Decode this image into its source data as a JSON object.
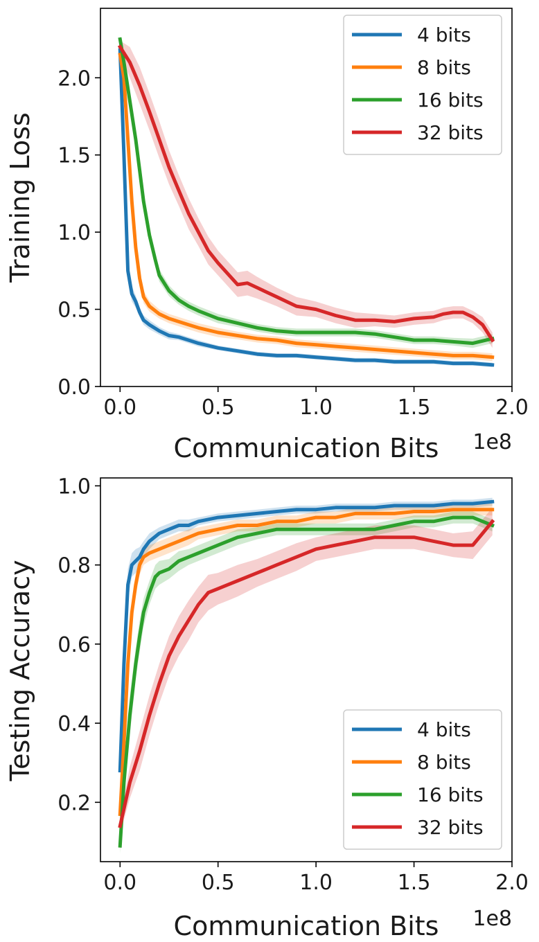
{
  "chart_data": [
    {
      "type": "line",
      "title": "",
      "xlabel": "Communication Bits",
      "ylabel": "Training Loss",
      "x_offset_label": "1e8",
      "xlim": [
        -0.1,
        2.0
      ],
      "ylim": [
        0.0,
        2.45
      ],
      "xticks": [
        0.0,
        0.5,
        1.0,
        1.5,
        2.0
      ],
      "xtick_labels": [
        "0.0",
        "0.5",
        "1.0",
        "1.5",
        "2.0"
      ],
      "yticks": [
        0.0,
        0.5,
        1.0,
        1.5,
        2.0
      ],
      "ytick_labels": [
        "0.0",
        "0.5",
        "1.0",
        "1.5",
        "2.0"
      ],
      "grid": false,
      "legend_position": "top-right",
      "series": [
        {
          "name": "4 bits",
          "color": "#1f77b4",
          "x": [
            0.0,
            0.02,
            0.04,
            0.06,
            0.08,
            0.1,
            0.12,
            0.15,
            0.2,
            0.25,
            0.3,
            0.35,
            0.4,
            0.5,
            0.6,
            0.7,
            0.8,
            0.9,
            1.0,
            1.1,
            1.2,
            1.3,
            1.4,
            1.5,
            1.6,
            1.7,
            1.8,
            1.9
          ],
          "y": [
            2.18,
            1.5,
            0.75,
            0.6,
            0.55,
            0.48,
            0.43,
            0.4,
            0.36,
            0.33,
            0.32,
            0.3,
            0.28,
            0.25,
            0.23,
            0.21,
            0.2,
            0.2,
            0.19,
            0.18,
            0.17,
            0.17,
            0.16,
            0.16,
            0.16,
            0.15,
            0.15,
            0.14
          ],
          "band": [
            0.01,
            0.05,
            0.06,
            0.05,
            0.04,
            0.03,
            0.03,
            0.03,
            0.025,
            0.025,
            0.02,
            0.02,
            0.02,
            0.015,
            0.015,
            0.015,
            0.015,
            0.015,
            0.015,
            0.015,
            0.015,
            0.015,
            0.015,
            0.015,
            0.015,
            0.015,
            0.015,
            0.015
          ]
        },
        {
          "name": "8 bits",
          "color": "#ff7f0e",
          "x": [
            0.0,
            0.02,
            0.04,
            0.06,
            0.08,
            0.1,
            0.12,
            0.15,
            0.2,
            0.25,
            0.3,
            0.35,
            0.4,
            0.5,
            0.6,
            0.7,
            0.8,
            0.9,
            1.0,
            1.1,
            1.2,
            1.3,
            1.4,
            1.5,
            1.6,
            1.7,
            1.8,
            1.9
          ],
          "y": [
            2.15,
            2.0,
            1.6,
            1.2,
            0.9,
            0.7,
            0.58,
            0.52,
            0.47,
            0.44,
            0.42,
            0.4,
            0.38,
            0.35,
            0.33,
            0.31,
            0.3,
            0.28,
            0.27,
            0.26,
            0.25,
            0.24,
            0.23,
            0.22,
            0.21,
            0.2,
            0.2,
            0.19
          ],
          "band": [
            0.02,
            0.06,
            0.07,
            0.06,
            0.05,
            0.04,
            0.04,
            0.035,
            0.03,
            0.03,
            0.03,
            0.03,
            0.03,
            0.03,
            0.025,
            0.025,
            0.025,
            0.025,
            0.025,
            0.025,
            0.025,
            0.025,
            0.025,
            0.025,
            0.025,
            0.025,
            0.025,
            0.025
          ]
        },
        {
          "name": "16 bits",
          "color": "#2ca02c",
          "x": [
            0.0,
            0.02,
            0.05,
            0.08,
            0.1,
            0.12,
            0.15,
            0.18,
            0.2,
            0.25,
            0.3,
            0.35,
            0.4,
            0.5,
            0.6,
            0.7,
            0.8,
            0.9,
            1.0,
            1.1,
            1.2,
            1.3,
            1.4,
            1.5,
            1.6,
            1.7,
            1.8,
            1.9
          ],
          "y": [
            2.25,
            2.1,
            1.85,
            1.6,
            1.4,
            1.2,
            0.98,
            0.82,
            0.72,
            0.62,
            0.56,
            0.52,
            0.49,
            0.44,
            0.41,
            0.38,
            0.36,
            0.35,
            0.35,
            0.35,
            0.35,
            0.34,
            0.32,
            0.3,
            0.3,
            0.29,
            0.28,
            0.31
          ],
          "band": [
            0.02,
            0.05,
            0.06,
            0.06,
            0.05,
            0.05,
            0.05,
            0.04,
            0.04,
            0.035,
            0.03,
            0.03,
            0.03,
            0.03,
            0.025,
            0.025,
            0.025,
            0.025,
            0.025,
            0.025,
            0.025,
            0.025,
            0.025,
            0.025,
            0.025,
            0.025,
            0.03,
            0.03
          ]
        },
        {
          "name": "32 bits",
          "color": "#d62728",
          "x": [
            0.0,
            0.05,
            0.1,
            0.15,
            0.2,
            0.25,
            0.3,
            0.35,
            0.4,
            0.45,
            0.5,
            0.6,
            0.65,
            0.7,
            0.8,
            0.9,
            1.0,
            1.1,
            1.2,
            1.3,
            1.4,
            1.5,
            1.6,
            1.65,
            1.7,
            1.75,
            1.8,
            1.85,
            1.9
          ],
          "y": [
            2.2,
            2.1,
            1.95,
            1.78,
            1.6,
            1.42,
            1.27,
            1.12,
            1.0,
            0.88,
            0.8,
            0.66,
            0.67,
            0.64,
            0.58,
            0.52,
            0.5,
            0.46,
            0.43,
            0.43,
            0.42,
            0.44,
            0.45,
            0.47,
            0.48,
            0.48,
            0.45,
            0.4,
            0.3
          ],
          "band": [
            0.04,
            0.1,
            0.12,
            0.12,
            0.12,
            0.11,
            0.1,
            0.1,
            0.09,
            0.09,
            0.08,
            0.08,
            0.08,
            0.07,
            0.06,
            0.06,
            0.05,
            0.05,
            0.05,
            0.04,
            0.04,
            0.04,
            0.04,
            0.04,
            0.04,
            0.04,
            0.04,
            0.05,
            0.05
          ]
        }
      ]
    },
    {
      "type": "line",
      "title": "",
      "xlabel": "Communication Bits",
      "ylabel": "Testing Accuracy",
      "x_offset_label": "1e8",
      "xlim": [
        -0.1,
        2.0
      ],
      "ylim": [
        0.05,
        1.02
      ],
      "xticks": [
        0.0,
        0.5,
        1.0,
        1.5,
        2.0
      ],
      "xtick_labels": [
        "0.0",
        "0.5",
        "1.0",
        "1.5",
        "2.0"
      ],
      "yticks": [
        0.2,
        0.4,
        0.6,
        0.8,
        1.0
      ],
      "ytick_labels": [
        "0.2",
        "0.4",
        "0.6",
        "0.8",
        "1.0"
      ],
      "grid": false,
      "legend_position": "bottom-right",
      "series": [
        {
          "name": "4 bits",
          "color": "#1f77b4",
          "x": [
            0.0,
            0.02,
            0.04,
            0.06,
            0.08,
            0.1,
            0.12,
            0.15,
            0.2,
            0.25,
            0.3,
            0.35,
            0.4,
            0.5,
            0.6,
            0.7,
            0.8,
            0.9,
            1.0,
            1.1,
            1.2,
            1.3,
            1.4,
            1.5,
            1.6,
            1.7,
            1.8,
            1.9
          ],
          "y": [
            0.28,
            0.55,
            0.75,
            0.8,
            0.81,
            0.82,
            0.84,
            0.86,
            0.88,
            0.89,
            0.9,
            0.9,
            0.91,
            0.92,
            0.925,
            0.93,
            0.935,
            0.94,
            0.94,
            0.945,
            0.945,
            0.945,
            0.95,
            0.95,
            0.95,
            0.955,
            0.955,
            0.96
          ],
          "band": [
            0.01,
            0.05,
            0.04,
            0.03,
            0.03,
            0.025,
            0.02,
            0.02,
            0.015,
            0.015,
            0.015,
            0.015,
            0.01,
            0.01,
            0.01,
            0.01,
            0.01,
            0.01,
            0.01,
            0.01,
            0.01,
            0.01,
            0.01,
            0.01,
            0.01,
            0.01,
            0.01,
            0.01
          ]
        },
        {
          "name": "8 bits",
          "color": "#ff7f0e",
          "x": [
            0.0,
            0.02,
            0.04,
            0.06,
            0.08,
            0.1,
            0.12,
            0.15,
            0.2,
            0.25,
            0.3,
            0.35,
            0.4,
            0.5,
            0.6,
            0.7,
            0.8,
            0.9,
            1.0,
            1.1,
            1.2,
            1.3,
            1.4,
            1.5,
            1.6,
            1.7,
            1.8,
            1.9
          ],
          "y": [
            0.17,
            0.35,
            0.55,
            0.68,
            0.75,
            0.8,
            0.82,
            0.83,
            0.84,
            0.85,
            0.86,
            0.87,
            0.88,
            0.89,
            0.9,
            0.9,
            0.91,
            0.91,
            0.92,
            0.92,
            0.93,
            0.93,
            0.93,
            0.935,
            0.935,
            0.94,
            0.94,
            0.94
          ],
          "band": [
            0.01,
            0.04,
            0.04,
            0.03,
            0.03,
            0.025,
            0.02,
            0.02,
            0.02,
            0.02,
            0.02,
            0.02,
            0.015,
            0.015,
            0.015,
            0.015,
            0.015,
            0.015,
            0.015,
            0.015,
            0.015,
            0.015,
            0.015,
            0.015,
            0.015,
            0.015,
            0.015,
            0.015
          ]
        },
        {
          "name": "16 bits",
          "color": "#2ca02c",
          "x": [
            0.0,
            0.02,
            0.05,
            0.08,
            0.1,
            0.12,
            0.15,
            0.18,
            0.2,
            0.25,
            0.3,
            0.35,
            0.4,
            0.5,
            0.6,
            0.7,
            0.8,
            0.9,
            1.0,
            1.1,
            1.2,
            1.3,
            1.4,
            1.5,
            1.6,
            1.7,
            1.8,
            1.9
          ],
          "y": [
            0.09,
            0.25,
            0.42,
            0.55,
            0.62,
            0.68,
            0.73,
            0.77,
            0.78,
            0.79,
            0.81,
            0.82,
            0.83,
            0.85,
            0.87,
            0.88,
            0.89,
            0.89,
            0.89,
            0.89,
            0.89,
            0.89,
            0.9,
            0.91,
            0.91,
            0.92,
            0.92,
            0.9
          ],
          "band": [
            0.02,
            0.04,
            0.05,
            0.04,
            0.04,
            0.035,
            0.03,
            0.03,
            0.03,
            0.025,
            0.025,
            0.02,
            0.02,
            0.02,
            0.02,
            0.015,
            0.015,
            0.015,
            0.015,
            0.015,
            0.015,
            0.015,
            0.015,
            0.015,
            0.015,
            0.015,
            0.015,
            0.015
          ]
        },
        {
          "name": "32 bits",
          "color": "#d62728",
          "x": [
            0.0,
            0.05,
            0.1,
            0.15,
            0.2,
            0.25,
            0.3,
            0.35,
            0.4,
            0.45,
            0.5,
            0.55,
            0.6,
            0.7,
            0.8,
            0.9,
            1.0,
            1.1,
            1.2,
            1.3,
            1.4,
            1.5,
            1.6,
            1.7,
            1.8,
            1.85,
            1.9
          ],
          "y": [
            0.14,
            0.25,
            0.33,
            0.42,
            0.5,
            0.57,
            0.62,
            0.66,
            0.7,
            0.73,
            0.74,
            0.75,
            0.76,
            0.78,
            0.8,
            0.82,
            0.84,
            0.85,
            0.86,
            0.87,
            0.87,
            0.87,
            0.86,
            0.85,
            0.85,
            0.88,
            0.91
          ],
          "band": [
            0.02,
            0.04,
            0.05,
            0.05,
            0.05,
            0.05,
            0.05,
            0.05,
            0.045,
            0.045,
            0.04,
            0.04,
            0.04,
            0.035,
            0.035,
            0.035,
            0.03,
            0.03,
            0.03,
            0.03,
            0.03,
            0.03,
            0.03,
            0.03,
            0.035,
            0.035,
            0.035
          ]
        }
      ]
    }
  ]
}
